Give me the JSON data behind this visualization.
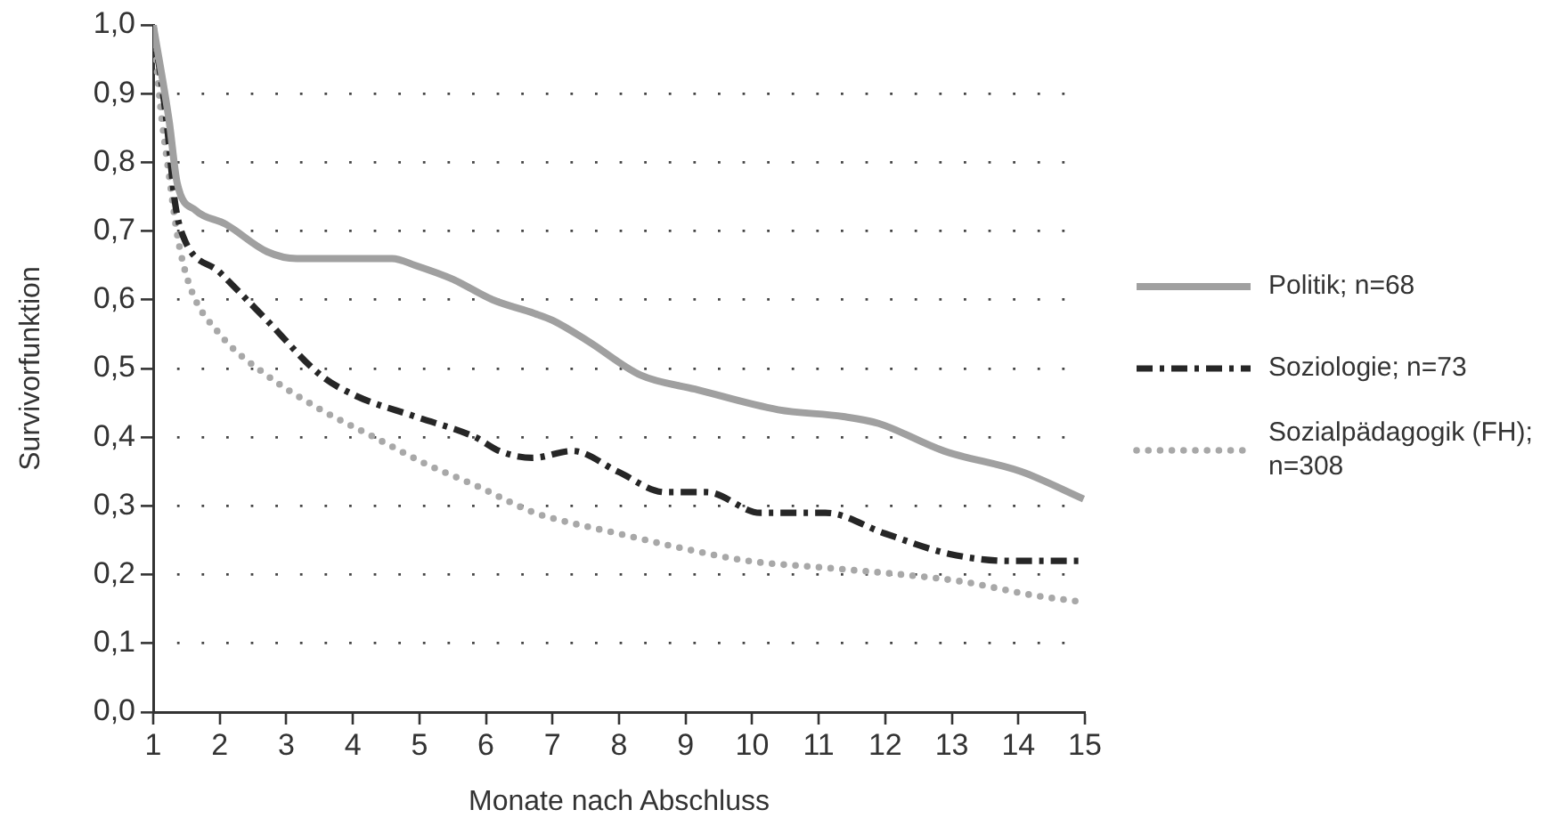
{
  "chart_data": {
    "type": "line",
    "xlabel": "Monate nach Abschluss",
    "ylabel": "Survivorfunktion",
    "xlim": [
      1,
      15
    ],
    "xticks": [
      1,
      2,
      3,
      4,
      5,
      6,
      7,
      8,
      9,
      10,
      11,
      12,
      13,
      14,
      15
    ],
    "ylim": [
      0,
      1
    ],
    "yticks": [
      {
        "value": 0,
        "label": "0,0"
      },
      {
        "value": 0.1,
        "label": "0,1"
      },
      {
        "value": 0.2,
        "label": "0,2"
      },
      {
        "value": 0.3,
        "label": "0,3"
      },
      {
        "value": 0.4,
        "label": "0,4"
      },
      {
        "value": 0.5,
        "label": "0,5"
      },
      {
        "value": 0.6,
        "label": "0,6"
      },
      {
        "value": 0.7,
        "label": "0,7"
      },
      {
        "value": 0.8,
        "label": "0,8"
      },
      {
        "value": 0.9,
        "label": "0,9"
      },
      {
        "value": 1,
        "label": "1,0"
      }
    ],
    "grid": "y",
    "legend": "right",
    "marker": "none",
    "series": [
      {
        "name": "Politik; n=68",
        "color": "#a0a0a0",
        "line_style": "solid",
        "x": [
          1,
          1.24,
          1.36,
          1.64,
          2.09,
          2.71,
          3.16,
          3.96,
          4.59,
          4.94,
          5.5,
          6.1,
          6.73,
          7.0,
          7.53,
          8.33,
          9.14,
          10.39,
          11.37,
          11.9,
          12.88,
          14.04,
          14.98
        ],
        "values": [
          1.0,
          0.86,
          0.77,
          0.73,
          0.71,
          0.67,
          0.66,
          0.66,
          0.66,
          0.65,
          0.63,
          0.6,
          0.58,
          0.57,
          0.54,
          0.49,
          0.47,
          0.44,
          0.43,
          0.42,
          0.38,
          0.35,
          0.31
        ]
      },
      {
        "name": "Soziologie; n=73",
        "color": "#262626",
        "line_style": "dashed",
        "x": [
          1,
          1.2,
          1.33,
          1.46,
          2.0,
          2.71,
          3.52,
          4.05,
          4.94,
          5.84,
          6.2,
          6.7,
          7.3,
          7.98,
          8.69,
          9.32,
          10.12,
          11.1,
          11.99,
          12.97,
          13.87,
          14.98
        ],
        "values": [
          1.0,
          0.86,
          0.74,
          0.69,
          0.64,
          0.57,
          0.49,
          0.46,
          0.43,
          0.4,
          0.38,
          0.37,
          0.38,
          0.35,
          0.32,
          0.32,
          0.29,
          0.29,
          0.26,
          0.23,
          0.22,
          0.22
        ]
      },
      {
        "name": "Sozialpädagogik (FH); n=308",
        "color": "#a8a8a8",
        "line_style": "dotted",
        "x": [
          1,
          1.11,
          1.24,
          1.37,
          1.55,
          2.0,
          2.71,
          3.52,
          4.32,
          5.12,
          5.84,
          6.73,
          7.08,
          7.98,
          8.87,
          9.94,
          11.1,
          12.26,
          13.15,
          14.22,
          14.98
        ],
        "values": [
          1.0,
          0.88,
          0.78,
          0.69,
          0.62,
          0.55,
          0.49,
          0.44,
          0.4,
          0.36,
          0.33,
          0.29,
          0.28,
          0.26,
          0.24,
          0.22,
          0.21,
          0.2,
          0.19,
          0.17,
          0.16
        ]
      }
    ]
  }
}
